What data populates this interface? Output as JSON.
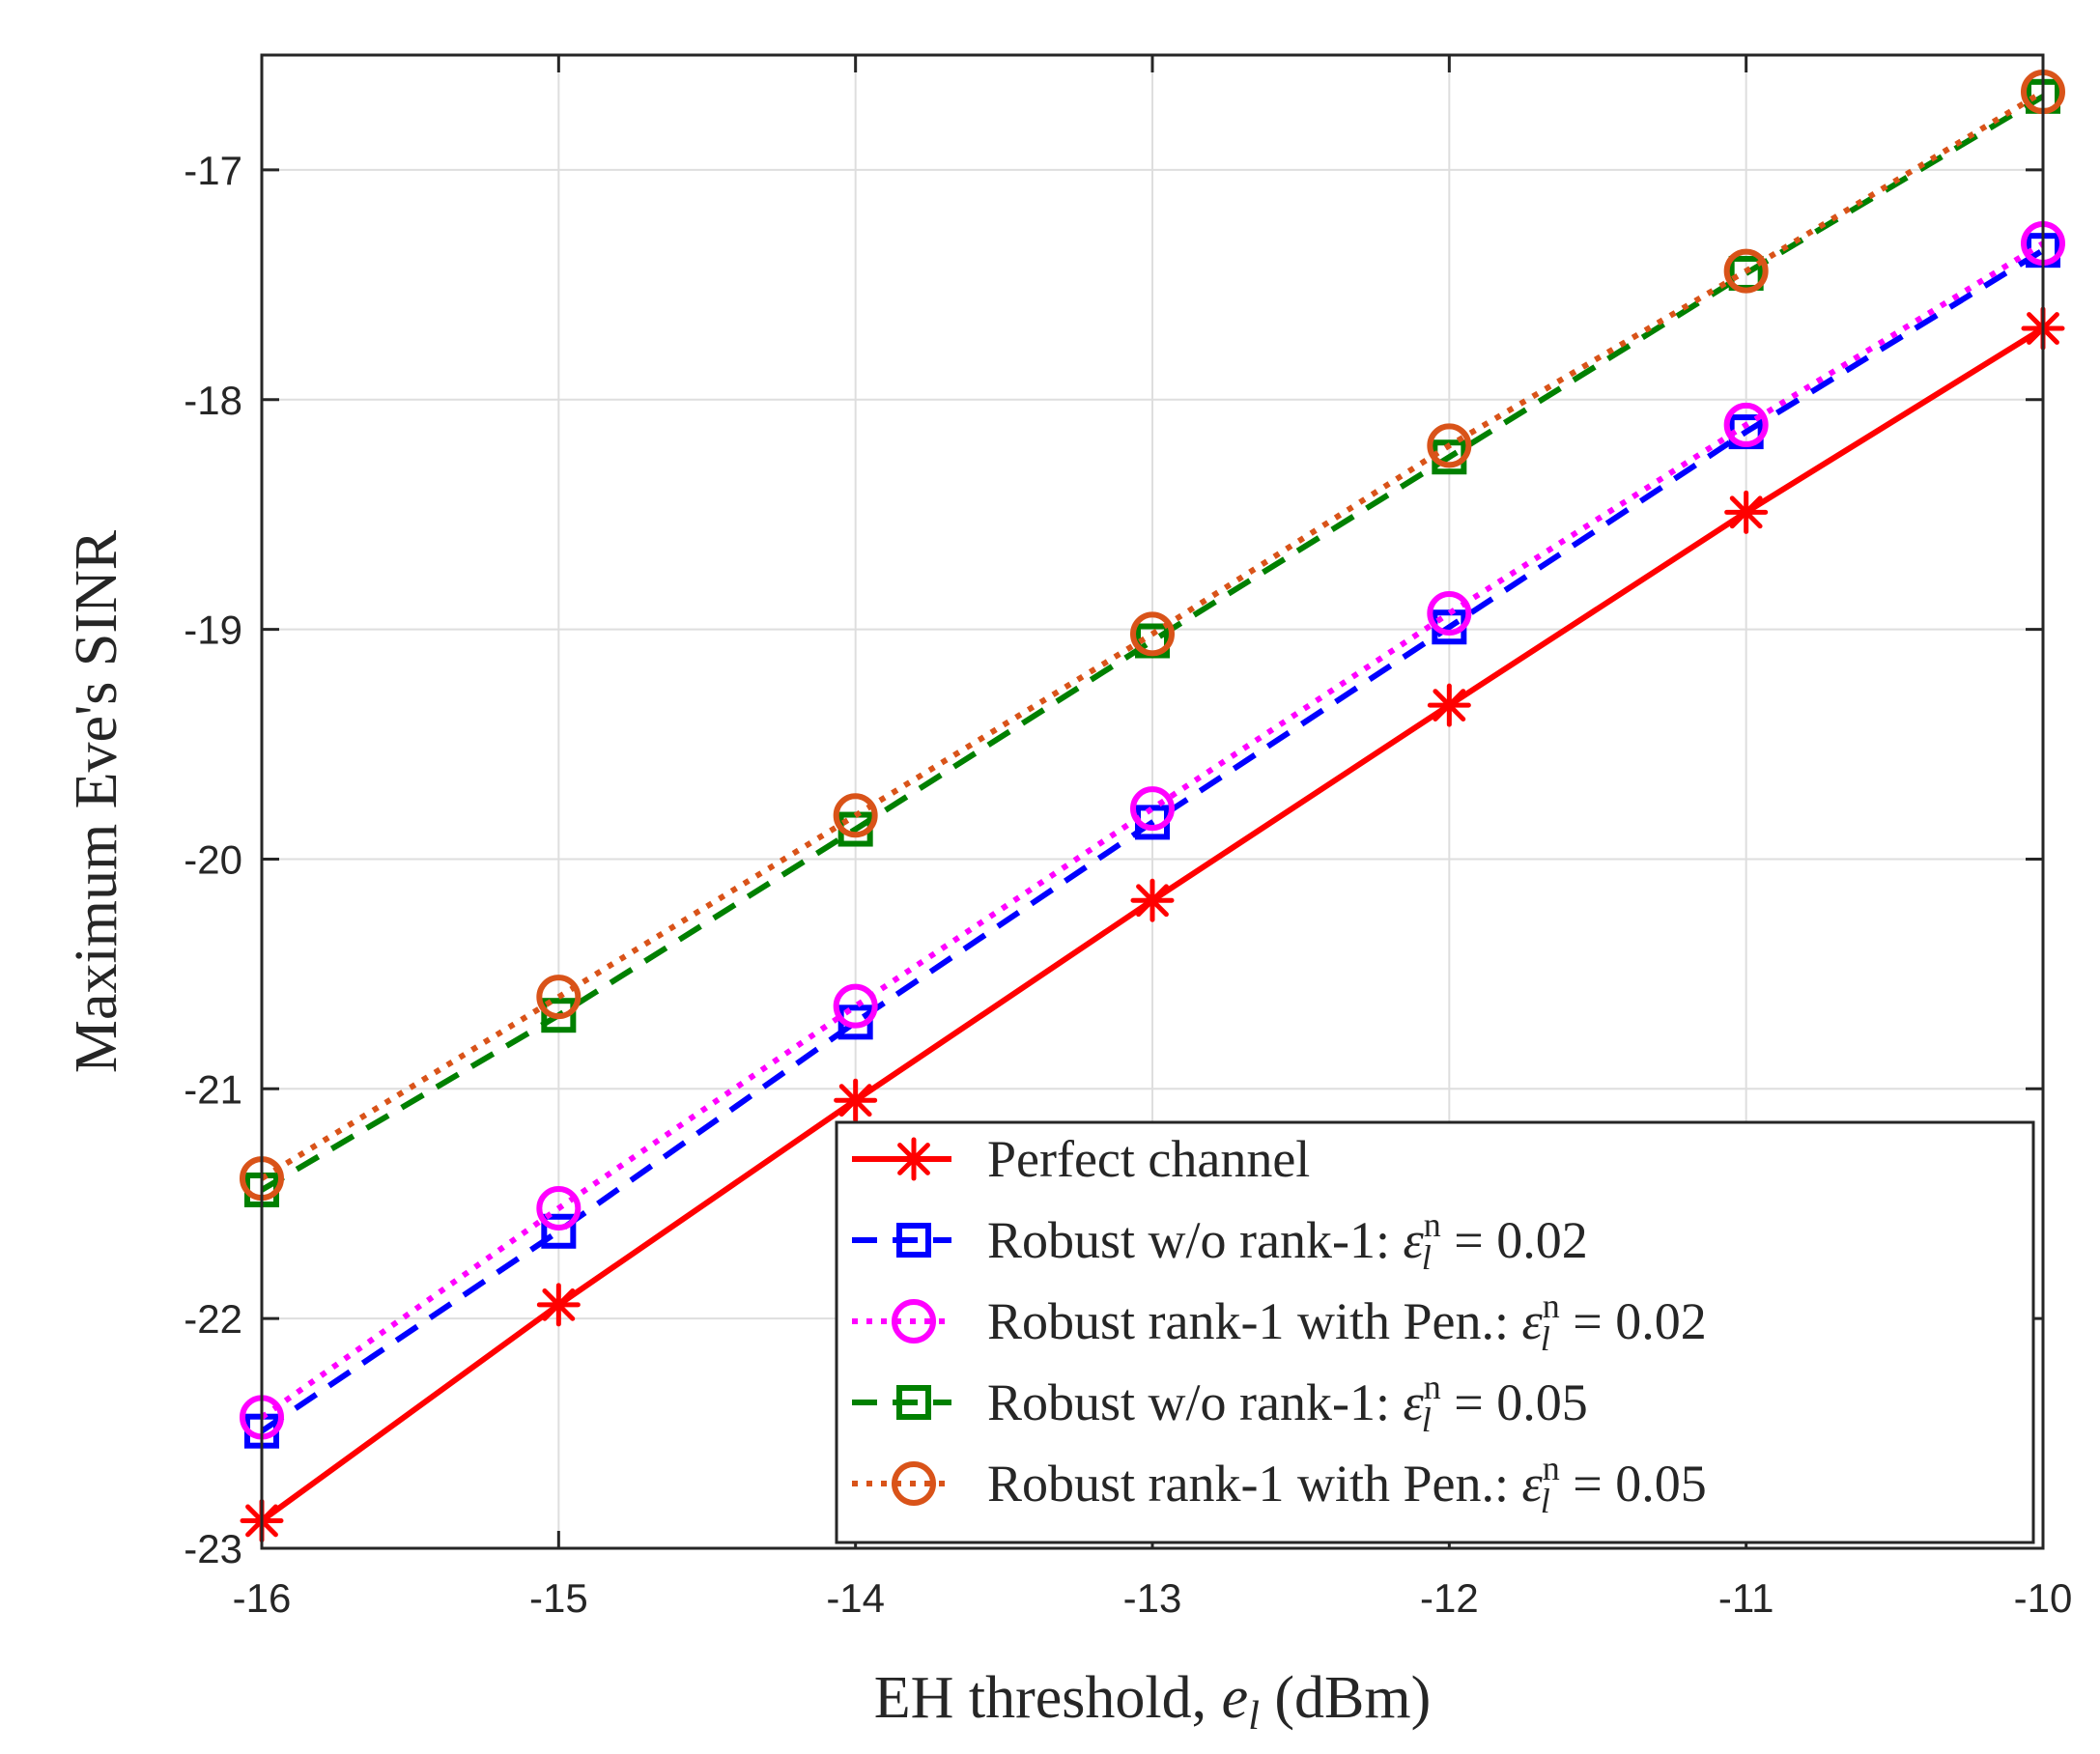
{
  "chart_data": {
    "type": "line",
    "title": "",
    "xlabel_main": "EH threshold, ",
    "xlabel_var": "e",
    "xlabel_sub": "l",
    "xlabel_unit": " (dBm)",
    "ylabel": "Maximum Eve's SINR",
    "xlim": [
      -16,
      -10
    ],
    "ylim": [
      -23,
      -16.5
    ],
    "xticks": [
      -16,
      -15,
      -14,
      -13,
      -12,
      -11,
      -10
    ],
    "xtick_labels": [
      "-16",
      "-15",
      "-14",
      "-13",
      "-12",
      "-11",
      "-10"
    ],
    "yticks": [
      -23,
      -22,
      -21,
      -20,
      -19,
      -18,
      -17
    ],
    "ytick_labels": [
      "-23",
      "-22",
      "-21",
      "-20",
      "-19",
      "-18",
      "-17"
    ],
    "grid": true,
    "legend_position": "bottom-right",
    "x": [
      -16,
      -15,
      -14,
      -13,
      -12,
      -11,
      -10
    ],
    "series": [
      {
        "name": "Perfect channel",
        "label_main": "Perfect channel",
        "label_eps": "",
        "color": "#ff0000",
        "linestyle": "solid",
        "marker": "asterisk",
        "values": [
          -22.88,
          -21.94,
          -21.05,
          -20.18,
          -19.33,
          -18.49,
          -17.69
        ]
      },
      {
        "name": "Robust w/o rank-1: εₗⁿ = 0.02",
        "label_main": "Robust w/o rank-1: ",
        "label_eps": " = 0.02",
        "color": "#0000ff",
        "linestyle": "dashed",
        "marker": "square",
        "values": [
          -22.49,
          -21.62,
          -20.71,
          -19.84,
          -18.99,
          -18.14,
          -17.35
        ]
      },
      {
        "name": "Robust rank-1 with Pen.: εₗⁿ = 0.02",
        "label_main": "Robust rank-1 with Pen.: ",
        "label_eps": " = 0.02",
        "color": "#ff00ff",
        "linestyle": "dotted",
        "marker": "circle",
        "values": [
          -22.43,
          -21.52,
          -20.64,
          -19.78,
          -18.93,
          -18.11,
          -17.32
        ]
      },
      {
        "name": "Robust w/o rank-1: εₗⁿ = 0.05",
        "label_main": "Robust w/o rank-1: ",
        "label_eps": " = 0.05",
        "color": "#008000",
        "linestyle": "dashed",
        "marker": "square",
        "values": [
          -21.44,
          -20.68,
          -19.87,
          -19.05,
          -18.25,
          -17.45,
          -16.68
        ]
      },
      {
        "name": "Robust rank-1 with Pen.: εₗⁿ = 0.05",
        "label_main": "Robust rank-1 with Pen.: ",
        "label_eps": " = 0.05",
        "color": "#d95319",
        "linestyle": "dotted",
        "marker": "circle",
        "values": [
          -21.39,
          -20.6,
          -19.81,
          -19.02,
          -18.2,
          -17.44,
          -16.66
        ]
      }
    ]
  }
}
